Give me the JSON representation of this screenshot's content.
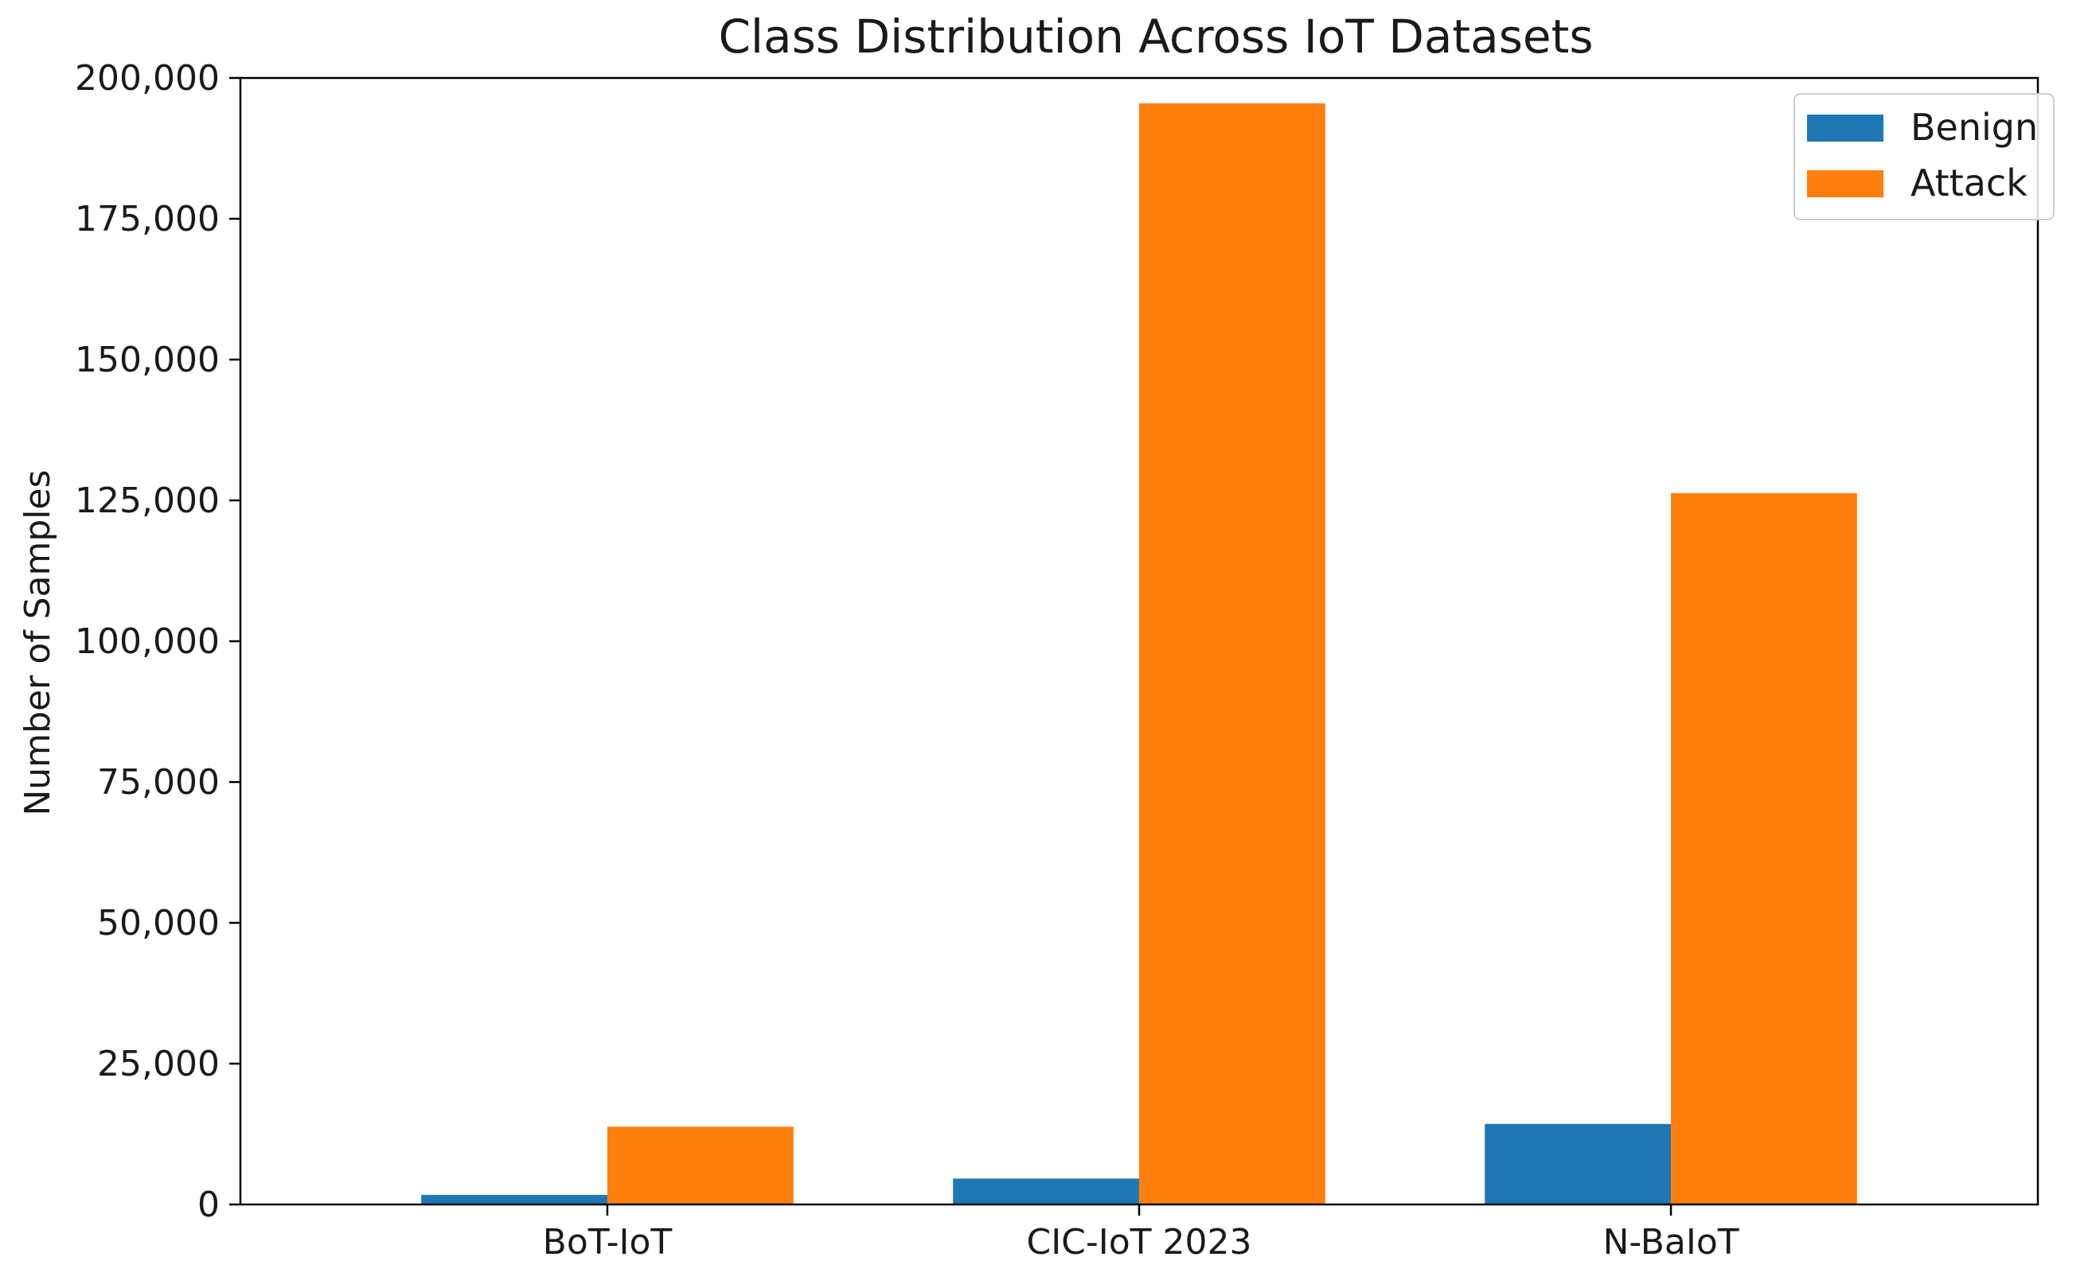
{
  "chart_data": {
    "type": "bar",
    "title": "Class Distribution Across IoT Datasets",
    "xlabel": "",
    "ylabel": "Number of Samples",
    "categories": [
      "BoT-IoT",
      "CIC-IoT 2023",
      "N-BaIoT"
    ],
    "series": [
      {
        "name": "Benign",
        "color": "#1f77b4",
        "values": [
          1700,
          4600,
          14300
        ]
      },
      {
        "name": "Attack",
        "color": "#ff7f0e",
        "values": [
          13800,
          195500,
          126300
        ]
      }
    ],
    "ylim": [
      0,
      200000
    ],
    "yticks": [
      0,
      25000,
      50000,
      75000,
      100000,
      125000,
      150000,
      175000,
      200000
    ],
    "ytick_labels": [
      "0",
      "25,000",
      "50,000",
      "75,000",
      "100,000",
      "125,000",
      "150,000",
      "175,000",
      "200,000"
    ],
    "grid": false,
    "legend_position": "top-right"
  }
}
